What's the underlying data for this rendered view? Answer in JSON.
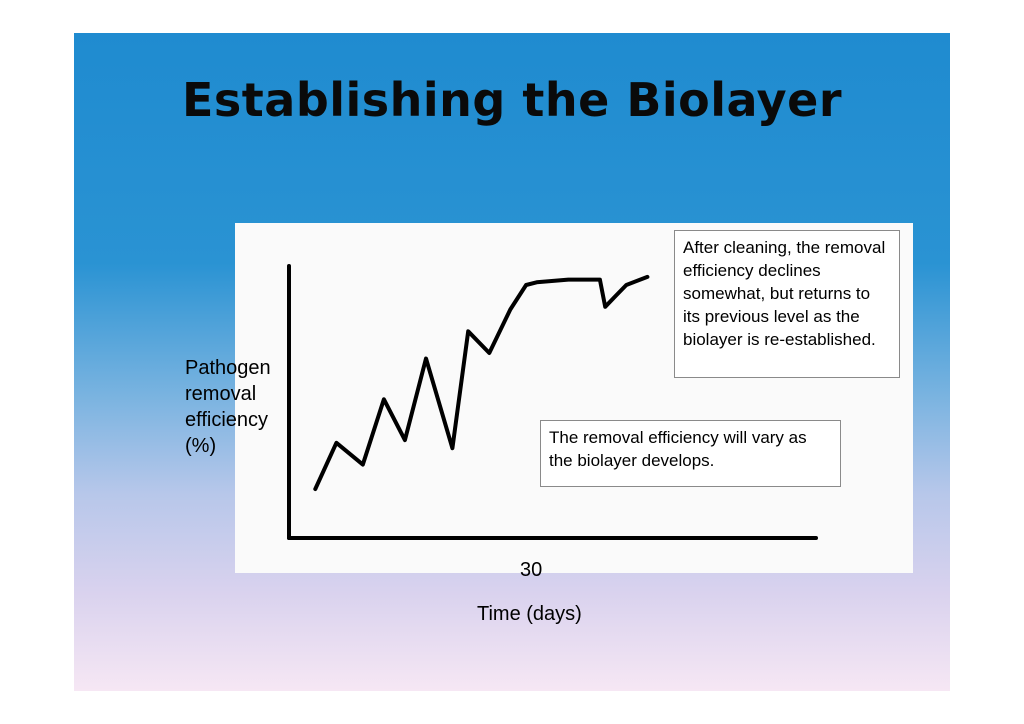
{
  "slide": {
    "title": "Establishing the Biolayer"
  },
  "callouts": {
    "cleaning": "After cleaning, the removal efficiency declines somewhat, but returns to its previous level as the biolayer is re-established.",
    "vary": "The removal efficiency will vary as the biolayer develops."
  },
  "chart_data": {
    "type": "line",
    "title": "",
    "xlabel": "Time (days)",
    "ylabel": "Pathogen removal efficiency (%)",
    "ylabel_lines": [
      "Pathogen",
      "removal",
      "efficiency",
      "(%)"
    ],
    "x_ticks": [
      "30"
    ],
    "grid": false,
    "series": [
      {
        "color": "#000000",
        "points": [
          [
            0.05,
            0.18
          ],
          [
            0.09,
            0.35
          ],
          [
            0.14,
            0.27
          ],
          [
            0.18,
            0.51
          ],
          [
            0.22,
            0.36
          ],
          [
            0.26,
            0.66
          ],
          [
            0.31,
            0.33
          ],
          [
            0.34,
            0.76
          ],
          [
            0.38,
            0.68
          ],
          [
            0.42,
            0.84
          ],
          [
            0.45,
            0.93
          ],
          [
            0.47,
            0.94
          ],
          [
            0.53,
            0.95
          ],
          [
            0.59,
            0.95
          ],
          [
            0.6,
            0.85
          ],
          [
            0.62,
            0.89
          ],
          [
            0.64,
            0.93
          ],
          [
            0.68,
            0.96
          ]
        ]
      }
    ],
    "xlim": [
      0,
      1
    ],
    "ylim": [
      0,
      1
    ]
  }
}
